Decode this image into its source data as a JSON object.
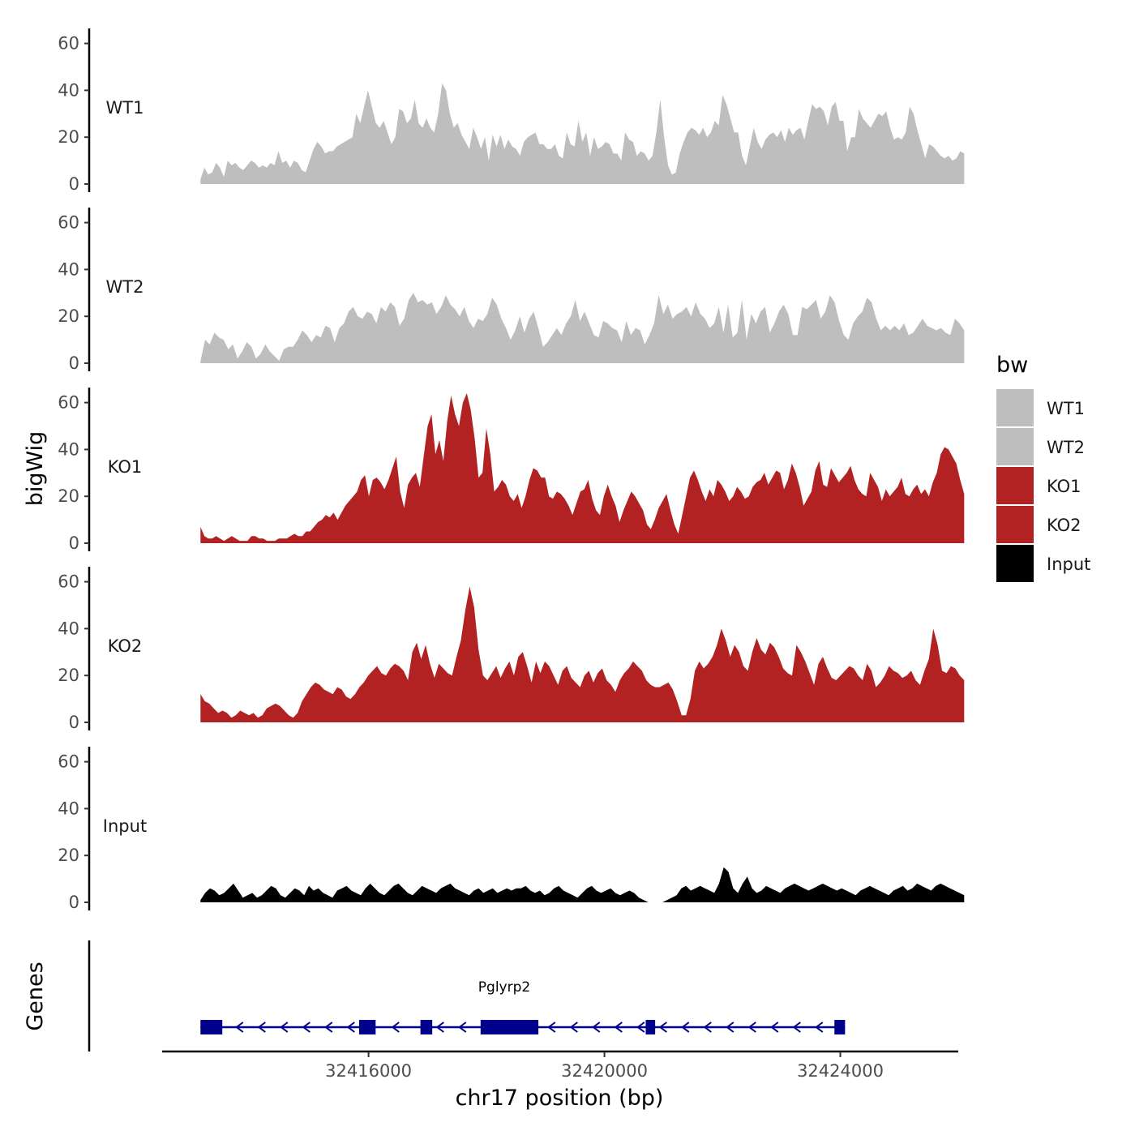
{
  "chart_data": {
    "type": "area",
    "chromosome": "chr17",
    "y_axis_title": "bigWig",
    "x_axis_title": "chr17 position (bp)",
    "xlim": [
      32412500,
      32426000
    ],
    "signal_x_range": [
      32413150,
      32426100
    ],
    "ylim": [
      0,
      65
    ],
    "y_ticks": [
      0,
      20,
      40,
      60
    ],
    "x_ticks": [
      32416000,
      32420000,
      32424000
    ],
    "x_tick_labels": [
      "32416000",
      "32420000",
      "32424000"
    ],
    "legend": {
      "title": "bw",
      "entries": [
        {
          "name": "WT1",
          "color": "#bebebe"
        },
        {
          "name": "WT2",
          "color": "#bebebe"
        },
        {
          "name": "KO1",
          "color": "#b22222"
        },
        {
          "name": "KO2",
          "color": "#b22222"
        },
        {
          "name": "Input",
          "color": "#000000"
        }
      ]
    },
    "series": [
      {
        "name": "WT1",
        "color": "#bebebe",
        "values": [
          2,
          7,
          4,
          5,
          9,
          7,
          3,
          10,
          8,
          9,
          7,
          6,
          8,
          10,
          9,
          7,
          8,
          7,
          9,
          8,
          14,
          9,
          10,
          7,
          10,
          9,
          6,
          5,
          10,
          15,
          18,
          16,
          13,
          14,
          14,
          16,
          17,
          18,
          19,
          20,
          30,
          26,
          33,
          40,
          33,
          26,
          24,
          27,
          22,
          17,
          20,
          32,
          31,
          26,
          28,
          36,
          26,
          24,
          28,
          24,
          22,
          30,
          43,
          40,
          30,
          24,
          26,
          21,
          18,
          15,
          24,
          20,
          15,
          20,
          10,
          21,
          16,
          21,
          15,
          19,
          16,
          15,
          12,
          18,
          20,
          21,
          22,
          17,
          17,
          15,
          15,
          17,
          12,
          11,
          22,
          17,
          16,
          27,
          18,
          22,
          12,
          20,
          15,
          16,
          18,
          17,
          13,
          13,
          10,
          22,
          19,
          18,
          12,
          14,
          13,
          10,
          12,
          22,
          36,
          20,
          8,
          4,
          5,
          13,
          18,
          22,
          24,
          23,
          21,
          24,
          20,
          22,
          27,
          25,
          38,
          34,
          28,
          22,
          22,
          12,
          8,
          16,
          24,
          18,
          15,
          19,
          21,
          22,
          20,
          23,
          18,
          24,
          21,
          23,
          24,
          19,
          27,
          34,
          32,
          33,
          31,
          25,
          33,
          35,
          27,
          27,
          14,
          20,
          20,
          32,
          28,
          26,
          24,
          27,
          30,
          29,
          31,
          24,
          19,
          20,
          19,
          22,
          33,
          30,
          23,
          17,
          11,
          17,
          16,
          14,
          12,
          11,
          12,
          10,
          11,
          14,
          13
        ]
      },
      {
        "name": "WT2",
        "color": "#bebebe",
        "values": [
          1,
          10,
          8,
          13,
          11,
          10,
          6,
          8,
          2,
          5,
          9,
          7,
          2,
          4,
          8,
          5,
          3,
          1,
          6,
          7,
          7,
          10,
          14,
          12,
          9,
          12,
          11,
          16,
          15,
          9,
          15,
          17,
          22,
          24,
          20,
          19,
          22,
          21,
          17,
          24,
          22,
          26,
          24,
          16,
          19,
          27,
          30,
          26,
          27,
          25,
          26,
          21,
          24,
          29,
          25,
          23,
          20,
          24,
          18,
          15,
          19,
          18,
          21,
          28,
          25,
          19,
          15,
          10,
          14,
          20,
          13,
          19,
          22,
          15,
          7,
          9,
          12,
          15,
          12,
          17,
          20,
          27,
          18,
          22,
          17,
          12,
          11,
          18,
          17,
          15,
          14,
          9,
          18,
          12,
          15,
          14,
          8,
          12,
          17,
          29,
          21,
          25,
          19,
          21,
          22,
          24,
          20,
          26,
          21,
          19,
          15,
          17,
          24,
          13,
          25,
          11,
          13,
          27,
          10,
          21,
          17,
          22,
          24,
          13,
          17,
          22,
          25,
          21,
          12,
          12,
          24,
          23,
          25,
          27,
          19,
          22,
          29,
          26,
          18,
          12,
          10,
          17,
          20,
          22,
          28,
          26,
          19,
          14,
          16,
          14,
          16,
          14,
          17,
          12,
          13,
          16,
          19,
          16,
          15,
          14,
          15,
          13,
          12,
          19,
          17,
          14
        ]
      },
      {
        "name": "KO1",
        "color": "#b22222",
        "values": [
          7,
          3,
          2,
          2,
          3,
          2,
          1,
          2,
          3,
          2,
          1,
          1,
          1,
          3,
          3,
          2,
          2,
          1,
          1,
          1,
          2,
          2,
          2,
          3,
          4,
          3,
          3,
          5,
          5,
          7,
          9,
          10,
          12,
          11,
          13,
          10,
          13,
          16,
          18,
          20,
          22,
          27,
          29,
          20,
          27,
          28,
          26,
          23,
          27,
          32,
          37,
          22,
          15,
          25,
          28,
          30,
          24,
          37,
          50,
          55,
          38,
          44,
          35,
          52,
          63,
          55,
          50,
          60,
          64,
          57,
          45,
          28,
          30,
          49,
          38,
          22,
          24,
          27,
          25,
          20,
          18,
          21,
          15,
          20,
          27,
          32,
          31,
          28,
          28,
          20,
          19,
          22,
          21,
          19,
          16,
          12,
          17,
          22,
          23,
          27,
          19,
          14,
          12,
          20,
          25,
          20,
          16,
          9,
          14,
          18,
          22,
          20,
          17,
          14,
          8,
          6,
          10,
          15,
          18,
          21,
          14,
          8,
          4,
          12,
          20,
          28,
          31,
          27,
          22,
          18,
          23,
          20,
          27,
          25,
          22,
          18,
          20,
          24,
          22,
          19,
          20,
          24,
          26,
          27,
          30,
          25,
          28,
          31,
          30,
          23,
          27,
          34,
          30,
          24,
          16,
          19,
          22,
          31,
          35,
          25,
          24,
          32,
          29,
          26,
          28,
          30,
          33,
          27,
          23,
          21,
          20,
          30,
          27,
          24,
          18,
          23,
          20,
          22,
          24,
          28,
          21,
          20,
          23,
          25,
          21,
          23,
          20,
          26,
          30,
          38,
          41,
          40,
          37,
          34,
          27,
          21
        ]
      },
      {
        "name": "KO2",
        "color": "#b22222",
        "values": [
          12,
          9,
          8,
          6,
          4,
          5,
          4,
          2,
          3,
          5,
          4,
          3,
          4,
          2,
          3,
          6,
          7,
          8,
          7,
          5,
          3,
          2,
          4,
          9,
          12,
          15,
          17,
          16,
          14,
          13,
          12,
          15,
          14,
          11,
          10,
          12,
          15,
          17,
          20,
          22,
          24,
          21,
          20,
          23,
          25,
          24,
          22,
          18,
          30,
          34,
          27,
          33,
          25,
          19,
          25,
          23,
          21,
          20,
          28,
          35,
          48,
          58,
          49,
          31,
          20,
          18,
          21,
          24,
          19,
          23,
          26,
          20,
          28,
          30,
          24,
          17,
          26,
          21,
          26,
          24,
          20,
          16,
          22,
          24,
          19,
          17,
          15,
          20,
          22,
          17,
          21,
          23,
          18,
          16,
          13,
          18,
          21,
          23,
          26,
          24,
          22,
          18,
          16,
          15,
          15,
          16,
          17,
          14,
          9,
          3,
          3,
          10,
          22,
          26,
          23,
          25,
          28,
          33,
          40,
          35,
          28,
          33,
          30,
          24,
          22,
          30,
          36,
          31,
          29,
          34,
          32,
          28,
          23,
          21,
          20,
          33,
          30,
          26,
          21,
          16,
          25,
          28,
          23,
          19,
          18,
          20,
          22,
          24,
          23,
          20,
          18,
          25,
          22,
          15,
          17,
          20,
          24,
          22,
          21,
          19,
          20,
          22,
          18,
          16,
          22,
          27,
          40,
          33,
          22,
          21,
          24,
          23,
          20,
          18
        ]
      },
      {
        "name": "Input",
        "color": "#000000",
        "values": [
          1,
          4,
          6,
          5,
          3,
          4,
          6,
          8,
          5,
          2,
          3,
          4,
          2,
          3,
          5,
          7,
          6,
          3,
          2,
          4,
          6,
          5,
          3,
          7,
          5,
          6,
          4,
          3,
          2,
          5,
          6,
          7,
          5,
          4,
          3,
          6,
          8,
          6,
          4,
          3,
          5,
          7,
          8,
          6,
          4,
          3,
          5,
          7,
          6,
          5,
          4,
          6,
          7,
          8,
          6,
          5,
          4,
          3,
          5,
          6,
          4,
          5,
          6,
          4,
          5,
          6,
          5,
          6,
          6,
          7,
          5,
          4,
          5,
          3,
          4,
          6,
          7,
          5,
          4,
          3,
          2,
          4,
          6,
          7,
          5,
          4,
          5,
          6,
          4,
          3,
          4,
          5,
          4,
          2,
          1,
          0,
          0,
          0,
          0,
          1,
          2,
          3,
          6,
          7,
          5,
          6,
          7,
          6,
          5,
          4,
          8,
          15,
          13,
          6,
          4,
          8,
          11,
          6,
          4,
          5,
          7,
          6,
          5,
          4,
          6,
          7,
          8,
          7,
          6,
          5,
          6,
          7,
          8,
          7,
          6,
          5,
          6,
          5,
          4,
          3,
          5,
          6,
          7,
          6,
          5,
          4,
          3,
          5,
          6,
          7,
          5,
          6,
          8,
          7,
          6,
          5,
          7,
          8,
          7,
          6,
          5,
          4,
          3
        ]
      }
    ],
    "gene_track": {
      "title": "Genes",
      "gene": "Pglyrp2",
      "strand": "-",
      "start": 32413150,
      "end": 32424080,
      "exons": [
        [
          32413150,
          32413520
        ],
        [
          32415840,
          32416120
        ],
        [
          32416880,
          32417080
        ],
        [
          32417900,
          32418880
        ],
        [
          32420700,
          32420860
        ],
        [
          32423900,
          32424080
        ]
      ]
    }
  }
}
